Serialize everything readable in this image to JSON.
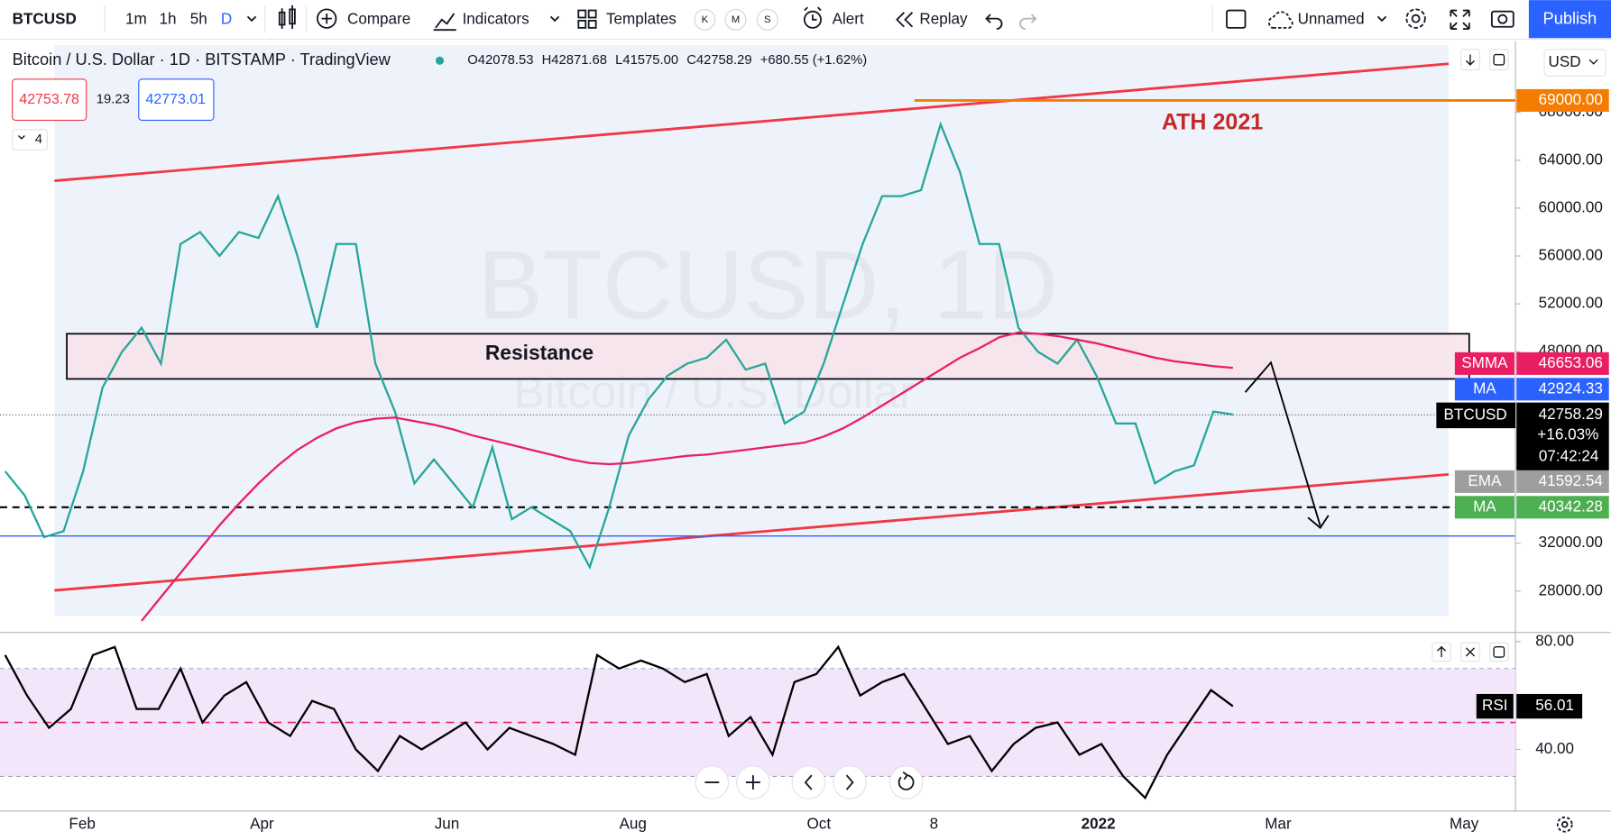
{
  "toolbar": {
    "symbol": "BTCUSD",
    "intervals": [
      "1m",
      "1h",
      "5h",
      "D"
    ],
    "compare": "Compare",
    "indicators": "Indicators",
    "templates": "Templates",
    "template_badges": [
      "K",
      "M",
      "S"
    ],
    "alert": "Alert",
    "replay": "Replay",
    "layout_name": "Unnamed",
    "publish": "Publish"
  },
  "legend": {
    "title": "Bitcoin / U.S. Dollar · 1D · BITSTAMP · TradingView",
    "ohlc": [
      "O42078.53",
      "H42871.68",
      "L41575.00",
      "C42758.29",
      "+680.55 (+1.62%)"
    ],
    "bid": "42753.78",
    "spread": "19.23",
    "ask": "42773.01",
    "indicator_count": "4",
    "currency": "USD"
  },
  "annotations": {
    "resistance": "Resistance",
    "ath": "ATH 2021",
    "watermark_symbol": "BTCUSD, 1D",
    "watermark_name": "Bitcoin / U.S. Dollar"
  },
  "chart_data": [
    {
      "type": "line",
      "ylim": [
        24620,
        73950
      ],
      "yticks": [
        {
          "value": 68000,
          "label": "68000.00"
        },
        {
          "value": 64000,
          "label": "64000.00"
        },
        {
          "value": 60000,
          "label": "60000.00"
        },
        {
          "value": 56000,
          "label": "56000.00"
        },
        {
          "value": 52000,
          "label": "52000.00"
        },
        {
          "value": 48000,
          "label": "48000.00"
        },
        {
          "value": 32000,
          "label": "32000.00"
        },
        {
          "value": 28000,
          "label": "28000.00"
        }
      ],
      "grid": false,
      "time_labels": [
        "Feb",
        "Apr",
        "Jun",
        "Aug",
        "Oct",
        "8",
        "2022",
        "Mar",
        "May"
      ],
      "series": [
        {
          "name": "BTCUSD",
          "color": "#26a69a",
          "change_label": "+16.03%",
          "countdown": "07:42:24",
          "values": [
            38000,
            36000,
            32500,
            33000,
            38000,
            45000,
            48000,
            50000,
            47000,
            57000,
            58000,
            56000,
            58000,
            57500,
            61000,
            56000,
            50000,
            57000,
            57000,
            47000,
            43000,
            37000,
            39000,
            37000,
            35000,
            40000,
            34000,
            35000,
            34000,
            33000,
            30000,
            35000,
            41000,
            44000,
            46000,
            47000,
            47500,
            49000,
            46500,
            47000,
            42000,
            43000,
            47000,
            52000,
            57000,
            61000,
            61000,
            61500,
            67000,
            63000,
            57000,
            57000,
            50000,
            48000,
            47000,
            49000,
            46000,
            42000,
            42000,
            37000,
            38000,
            38500,
            43000,
            42758.29
          ]
        },
        {
          "name": "SMMA",
          "color": "#e91e63",
          "values": [
            null,
            null,
            null,
            null,
            null,
            null,
            null,
            25500,
            27500,
            29500,
            31500,
            33500,
            35300,
            37000,
            38500,
            39800,
            40800,
            41600,
            42100,
            42400,
            42500,
            42200,
            41900,
            41500,
            41000,
            40600,
            40200,
            39800,
            39400,
            39000,
            38700,
            38600,
            38700,
            38900,
            39100,
            39300,
            39400,
            39600,
            39800,
            40000,
            40200,
            40400,
            40900,
            41600,
            42500,
            43500,
            44500,
            45500,
            46500,
            47500,
            48300,
            49200,
            49600,
            49500,
            49300,
            49000,
            48700,
            48300,
            47900,
            47500,
            47200,
            47000,
            46800,
            46653.06
          ]
        }
      ],
      "levels": [
        {
          "value": 69000,
          "label": "69000.00",
          "color": "#f57c00"
        }
      ],
      "price_labels": [
        {
          "name": "MA",
          "value": 42924.33,
          "color": "#2962ff"
        },
        {
          "name": "EMA",
          "value": 41592.54,
          "color": "#9e9e9e"
        },
        {
          "name": "MA",
          "value": 40342.28,
          "color": "#4caf50"
        }
      ]
    },
    {
      "type": "line",
      "ylim": [
        19,
        83
      ],
      "yticks": [
        {
          "value": 80,
          "label": "80.00"
        },
        {
          "value": 40,
          "label": "40.00"
        }
      ],
      "band": [
        30,
        70
      ],
      "midline": 50,
      "series": [
        {
          "name": "RSI",
          "color": "#000000",
          "values": [
            75,
            60,
            48,
            55,
            75,
            78,
            55,
            55,
            70,
            50,
            60,
            65,
            50,
            45,
            58,
            55,
            40,
            32,
            45,
            40,
            45,
            50,
            40,
            48,
            45,
            42,
            38,
            75,
            70,
            73,
            70,
            65,
            68,
            45,
            52,
            38,
            65,
            68,
            78,
            60,
            65,
            68,
            55,
            42,
            45,
            32,
            42,
            48,
            50,
            38,
            42,
            30,
            22,
            38,
            50,
            62,
            56.01
          ]
        }
      ]
    }
  ]
}
